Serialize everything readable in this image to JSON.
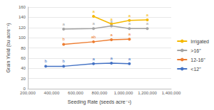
{
  "chart_data": {
    "type": "line",
    "x_label": "Seeding Rate (seeds acre⁻¹)",
    "y_label": "Grain Yield (bu acre⁻¹)",
    "xlim": [
      200000,
      1400000
    ],
    "xticks": [
      {
        "value": 200000,
        "label": "200,000"
      },
      {
        "value": 400000,
        "label": "400,000"
      },
      {
        "value": 600000,
        "label": "600,000"
      },
      {
        "value": 800000,
        "label": "800,000"
      },
      {
        "value": 1000000,
        "label": "1,000,000"
      },
      {
        "value": 1200000,
        "label": "1,200,000"
      },
      {
        "value": 1400000,
        "label": "1,400,000"
      }
    ],
    "ylim": [
      0,
      160
    ],
    "yticks": [
      0,
      20,
      40,
      60,
      80,
      100,
      120,
      140,
      160
    ],
    "grid": true,
    "legend": "right",
    "marker": "circle",
    "series": [
      {
        "name": "Irrigated",
        "color": "#f5b800",
        "x": [
          750000,
          900000,
          1050000,
          1200000
        ],
        "values": [
          142,
          127,
          134,
          135
        ],
        "annotations": [
          "a",
          "a",
          "a",
          "a"
        ]
      },
      {
        "name": ">16\"",
        "color": "#a5a5a5",
        "x": [
          500000,
          750000,
          900000,
          1050000,
          1200000
        ],
        "values": [
          117,
          118,
          123,
          118,
          118
        ],
        "annotations": [
          "a",
          "a",
          "a",
          "a",
          "a"
        ]
      },
      {
        "name": "12-16\"",
        "color": "#ed7d31",
        "x": [
          500000,
          750000,
          900000,
          1050000
        ],
        "values": [
          87,
          92,
          96,
          97
        ],
        "annotations": [
          "b",
          "ab",
          "a",
          "a"
        ]
      },
      {
        "name": "<12\"",
        "color": "#4472c4",
        "x": [
          350000,
          500000,
          750000,
          900000,
          1050000
        ],
        "values": [
          44,
          44,
          49,
          50,
          49
        ],
        "annotations": [
          "b",
          "b",
          "a",
          "a",
          "a"
        ]
      }
    ]
  }
}
